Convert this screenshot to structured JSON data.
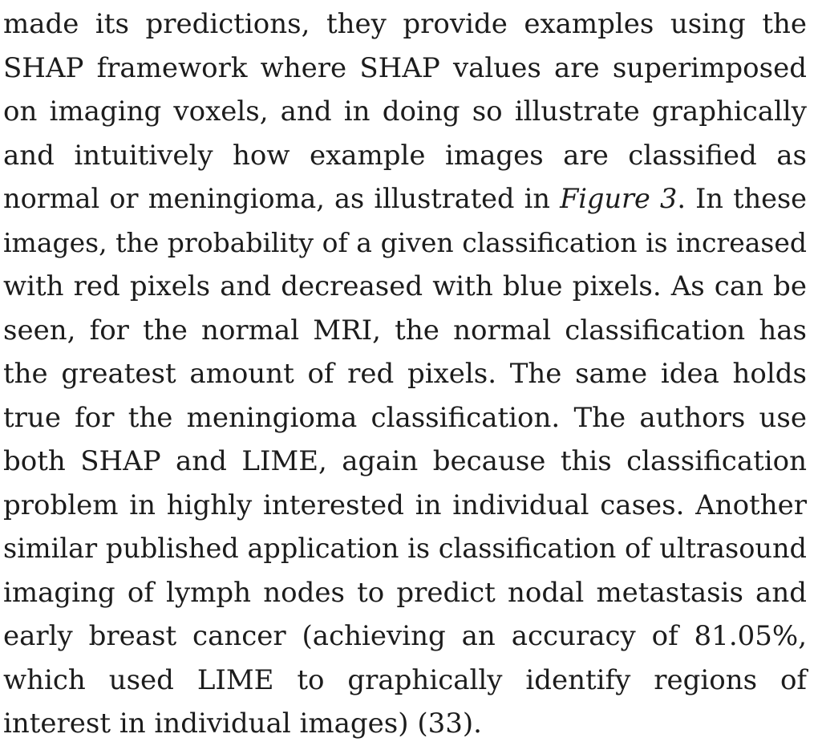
{
  "paragraph": {
    "lines": [
      "made its predictions, they provide examples using the",
      "SHAP framework where SHAP values are superimposed",
      "on imaging voxels, and in doing so illustrate graphically",
      "and intuitively how example images are classified as",
      {
        "before": "normal or meningioma, as illustrated in ",
        "figure_ref": "Figure 3",
        "after": ". In these"
      },
      "images, the probability of a given classification is increased",
      "with red pixels and decreased with blue pixels. As can be",
      "seen, for the normal MRI, the normal classification has",
      "the greatest amount of red pixels. The same idea holds",
      "true for the meningioma classification. The authors use",
      "both SHAP and LIME, again because this classification",
      "problem in highly interested in individual cases. Another",
      "similar published application is classification of ultrasound",
      "imaging of lymph nodes to predict nodal metastasis and",
      "early breast cancer (achieving an accuracy of 81.05%,",
      "which used LIME to graphically identify regions of",
      "interest in individual images) (33)."
    ]
  }
}
